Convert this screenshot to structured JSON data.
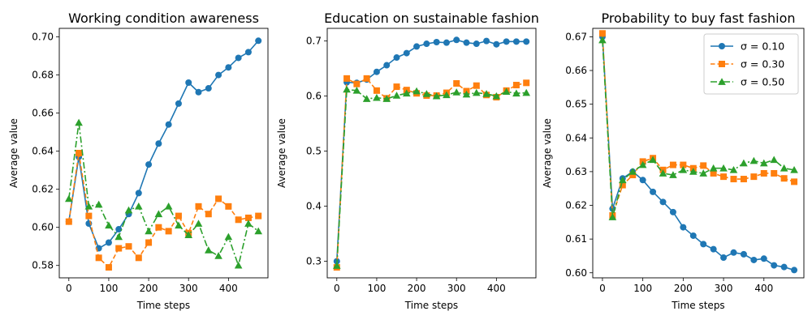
{
  "chart_data": [
    {
      "type": "line",
      "title": "Working condition awareness",
      "xlabel": "Time steps",
      "ylabel": "Average value",
      "xlim": [
        -24,
        499
      ],
      "ylim": [
        0.5735,
        0.7045
      ],
      "xticks": [
        0,
        100,
        200,
        300,
        400
      ],
      "yticks": [
        0.58,
        0.6,
        0.62,
        0.64,
        0.66,
        0.68,
        0.7
      ],
      "ytick_labels": [
        "0.58",
        "0.60",
        "0.62",
        "0.64",
        "0.66",
        "0.68",
        "0.70"
      ],
      "x": [
        0,
        25,
        50,
        75,
        100,
        125,
        150,
        175,
        200,
        225,
        250,
        275,
        300,
        325,
        350,
        375,
        400,
        425,
        450,
        475
      ],
      "series": [
        {
          "name": "σ = 0.10",
          "values": [
            0.603,
            0.637,
            0.602,
            0.589,
            0.592,
            0.599,
            0.607,
            0.618,
            0.633,
            0.644,
            0.654,
            0.665,
            0.676,
            0.671,
            0.673,
            0.68,
            0.684,
            0.689,
            0.692,
            0.698
          ]
        },
        {
          "name": "σ = 0.30",
          "values": [
            0.603,
            0.639,
            0.606,
            0.584,
            0.579,
            0.589,
            0.59,
            0.584,
            0.592,
            0.6,
            0.598,
            0.606,
            0.597,
            0.611,
            0.607,
            0.615,
            0.611,
            0.604,
            0.605,
            0.606
          ]
        },
        {
          "name": "σ = 0.50",
          "values": [
            0.615,
            0.655,
            0.611,
            0.612,
            0.601,
            0.595,
            0.609,
            0.611,
            0.598,
            0.607,
            0.611,
            0.601,
            0.596,
            0.602,
            0.588,
            0.585,
            0.595,
            0.58,
            0.602,
            0.598
          ]
        }
      ]
    },
    {
      "type": "line",
      "title": "Education on sustainable fashion",
      "xlabel": "Time steps",
      "ylabel": "Average value",
      "xlim": [
        -24,
        499
      ],
      "ylim": [
        0.27,
        0.723
      ],
      "xticks": [
        0,
        100,
        200,
        300,
        400
      ],
      "yticks": [
        0.3,
        0.4,
        0.5,
        0.6,
        0.7
      ],
      "ytick_labels": [
        "0.3",
        "0.4",
        "0.5",
        "0.6",
        "0.7"
      ],
      "x": [
        0,
        25,
        50,
        75,
        100,
        125,
        150,
        175,
        200,
        225,
        250,
        275,
        300,
        325,
        350,
        375,
        400,
        425,
        450,
        475
      ],
      "series": [
        {
          "name": "σ = 0.10",
          "values": [
            0.3,
            0.625,
            0.624,
            0.63,
            0.644,
            0.656,
            0.67,
            0.678,
            0.69,
            0.695,
            0.698,
            0.697,
            0.702,
            0.697,
            0.695,
            0.7,
            0.694,
            0.699,
            0.699,
            0.699
          ]
        },
        {
          "name": "σ = 0.30",
          "values": [
            0.289,
            0.632,
            0.622,
            0.632,
            0.61,
            0.596,
            0.617,
            0.611,
            0.605,
            0.601,
            0.601,
            0.606,
            0.623,
            0.609,
            0.619,
            0.602,
            0.598,
            0.61,
            0.62,
            0.624
          ]
        },
        {
          "name": "σ = 0.50",
          "values": [
            0.292,
            0.612,
            0.61,
            0.595,
            0.597,
            0.595,
            0.601,
            0.605,
            0.609,
            0.604,
            0.6,
            0.602,
            0.607,
            0.603,
            0.606,
            0.604,
            0.6,
            0.608,
            0.605,
            0.606
          ]
        }
      ]
    },
    {
      "type": "line",
      "title": "Probability to buy fast fashion",
      "xlabel": "Time steps",
      "ylabel": "Average value",
      "xlim": [
        -24,
        499
      ],
      "ylim": [
        0.5985,
        0.6725
      ],
      "xticks": [
        0,
        100,
        200,
        300,
        400
      ],
      "yticks": [
        0.6,
        0.61,
        0.62,
        0.63,
        0.64,
        0.65,
        0.66,
        0.67
      ],
      "ytick_labels": [
        "0.60",
        "0.61",
        "0.62",
        "0.63",
        "0.64",
        "0.65",
        "0.66",
        "0.67"
      ],
      "legend": "top-right",
      "x": [
        0,
        25,
        50,
        75,
        100,
        125,
        150,
        175,
        200,
        225,
        250,
        275,
        300,
        325,
        350,
        375,
        400,
        425,
        450,
        475
      ],
      "series": [
        {
          "name": "σ = 0.10",
          "values": [
            0.67,
            0.619,
            0.628,
            0.63,
            0.6275,
            0.624,
            0.621,
            0.618,
            0.6135,
            0.611,
            0.6085,
            0.607,
            0.6045,
            0.606,
            0.6055,
            0.6038,
            0.6042,
            0.6022,
            0.6017,
            0.6008
          ]
        },
        {
          "name": "σ = 0.30",
          "values": [
            0.671,
            0.617,
            0.626,
            0.629,
            0.633,
            0.634,
            0.6305,
            0.632,
            0.632,
            0.631,
            0.6318,
            0.6295,
            0.6285,
            0.6278,
            0.6278,
            0.6285,
            0.6295,
            0.6295,
            0.628,
            0.627
          ]
        },
        {
          "name": "σ = 0.50",
          "values": [
            0.669,
            0.6165,
            0.6275,
            0.63,
            0.632,
            0.6335,
            0.6295,
            0.629,
            0.6305,
            0.63,
            0.6295,
            0.631,
            0.631,
            0.6305,
            0.6325,
            0.6332,
            0.6325,
            0.6335,
            0.631,
            0.6305
          ]
        }
      ]
    }
  ],
  "colors": {
    "series": [
      "#1f77b4",
      "#ff7f0e",
      "#2ca02c"
    ]
  },
  "markers": [
    "circle",
    "square",
    "triangle"
  ],
  "dashes": [
    "solid",
    "dashed",
    "dashdot"
  ]
}
